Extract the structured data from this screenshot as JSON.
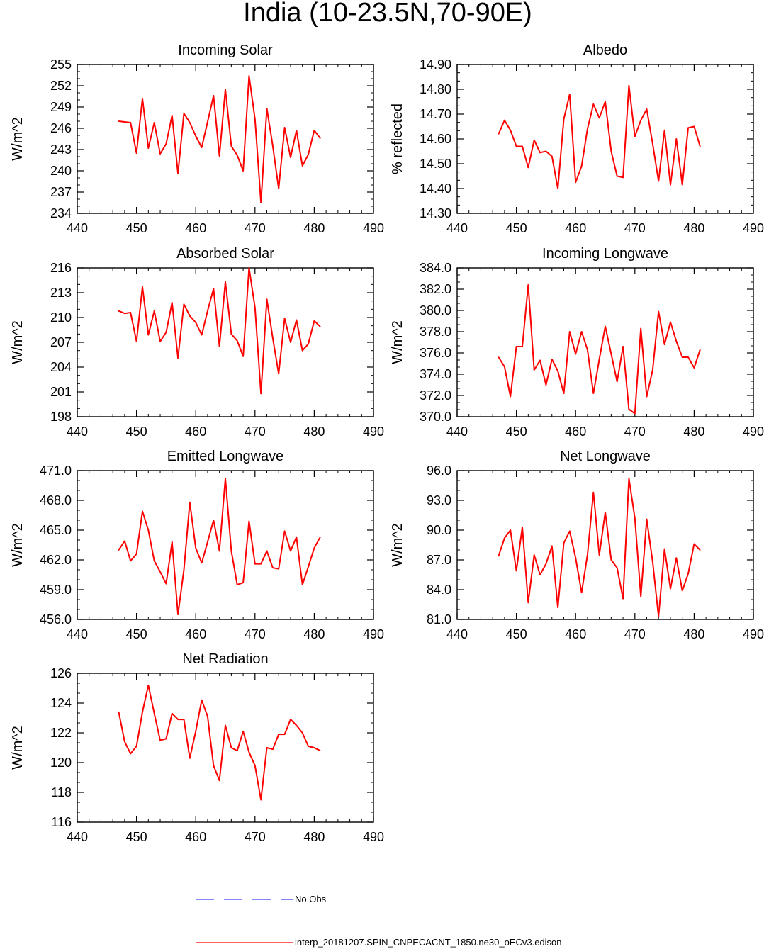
{
  "figure": {
    "title": "India (10-23.5N,70-90E)",
    "line_color": "#ff0000",
    "obs_color": "#3b3bff"
  },
  "legend": {
    "obs_label": "No Obs",
    "model_label": "interp_20181207.SPIN_CNPECACNT_1850.ne30_oECv3.edison"
  },
  "chart_data": [
    {
      "type": "line",
      "title": "Incoming Solar",
      "ylabel": "W/m^2",
      "xlim": [
        440,
        490
      ],
      "ylim": [
        234,
        255
      ],
      "xticks": [
        "440",
        "450",
        "460",
        "470",
        "480",
        "490"
      ],
      "yticks": [
        "234",
        "237",
        "240",
        "243",
        "246",
        "249",
        "252",
        "255"
      ],
      "x": [
        447,
        448,
        449,
        450,
        451,
        452,
        453,
        454,
        455,
        456,
        457,
        458,
        459,
        460,
        461,
        462,
        463,
        464,
        465,
        466,
        467,
        468,
        469,
        470,
        471,
        472,
        473,
        474,
        475,
        476,
        477,
        478,
        479,
        480,
        481
      ],
      "series": [
        {
          "values": [
            247.0,
            246.9,
            246.8,
            242.5,
            250.2,
            243.2,
            246.8,
            242.4,
            243.8,
            247.8,
            239.6,
            248.1,
            246.8,
            244.9,
            243.3,
            246.9,
            250.6,
            242.1,
            251.5,
            243.5,
            242.2,
            240.0,
            253.4,
            247.3,
            235.5,
            248.8,
            243.5,
            237.5,
            246.1,
            241.9,
            245.7,
            240.7,
            242.3,
            245.7,
            244.6
          ]
        }
      ]
    },
    {
      "type": "line",
      "title": "Albedo",
      "ylabel": "% reflected",
      "xlim": [
        440,
        490
      ],
      "ylim": [
        14.3,
        14.9
      ],
      "xticks": [
        "440",
        "450",
        "460",
        "470",
        "480",
        "490"
      ],
      "yticks": [
        "14.30",
        "14.40",
        "14.50",
        "14.60",
        "14.70",
        "14.80",
        "14.90"
      ],
      "x": [
        447,
        448,
        449,
        450,
        451,
        452,
        453,
        454,
        455,
        456,
        457,
        458,
        459,
        460,
        461,
        462,
        463,
        464,
        465,
        466,
        467,
        468,
        469,
        470,
        471,
        472,
        473,
        474,
        475,
        476,
        477,
        478,
        479,
        480,
        481
      ],
      "series": [
        {
          "values": [
            14.62,
            14.675,
            14.635,
            14.57,
            14.57,
            14.485,
            14.595,
            14.545,
            14.55,
            14.53,
            14.4,
            14.68,
            14.78,
            14.425,
            14.49,
            14.64,
            14.74,
            14.685,
            14.75,
            14.55,
            14.45,
            14.445,
            14.815,
            14.61,
            14.675,
            14.72,
            14.58,
            14.43,
            14.635,
            14.415,
            14.6,
            14.415,
            14.645,
            14.65,
            14.57
          ]
        }
      ]
    },
    {
      "type": "line",
      "title": "Absorbed Solar",
      "ylabel": "W/m^2",
      "xlim": [
        440,
        490
      ],
      "ylim": [
        198,
        216
      ],
      "xticks": [
        "440",
        "450",
        "460",
        "470",
        "480",
        "490"
      ],
      "yticks": [
        "198",
        "201",
        "204",
        "207",
        "210",
        "213",
        "216"
      ],
      "x": [
        447,
        448,
        449,
        450,
        451,
        452,
        453,
        454,
        455,
        456,
        457,
        458,
        459,
        460,
        461,
        462,
        463,
        464,
        465,
        466,
        467,
        468,
        469,
        470,
        471,
        472,
        473,
        474,
        475,
        476,
        477,
        478,
        479,
        480,
        481
      ],
      "series": [
        {
          "values": [
            210.8,
            210.5,
            210.6,
            207.1,
            213.7,
            207.9,
            210.8,
            207.1,
            208.2,
            211.8,
            205.1,
            211.6,
            210.2,
            209.4,
            207.9,
            210.8,
            213.5,
            206.5,
            214.3,
            208.0,
            207.2,
            205.3,
            216.0,
            211.2,
            200.8,
            212.2,
            207.5,
            203.2,
            209.9,
            207.0,
            209.7,
            206.0,
            206.8,
            209.6,
            208.9
          ]
        }
      ]
    },
    {
      "type": "line",
      "title": "Incoming Longwave",
      "ylabel": "W/m^2",
      "xlim": [
        440,
        490
      ],
      "ylim": [
        370,
        384
      ],
      "xticks": [
        "440",
        "450",
        "460",
        "470",
        "480",
        "490"
      ],
      "yticks": [
        "370.0",
        "372.0",
        "374.0",
        "376.0",
        "378.0",
        "380.0",
        "382.0",
        "384.0"
      ],
      "x": [
        447,
        448,
        449,
        450,
        451,
        452,
        453,
        454,
        455,
        456,
        457,
        458,
        459,
        460,
        461,
        462,
        463,
        464,
        465,
        466,
        467,
        468,
        469,
        470,
        471,
        472,
        473,
        474,
        475,
        476,
        477,
        478,
        479,
        480,
        481
      ],
      "series": [
        {
          "values": [
            375.6,
            374.7,
            371.9,
            376.6,
            376.6,
            382.4,
            374.4,
            375.3,
            373.0,
            375.4,
            374.3,
            372.2,
            378.0,
            375.9,
            378.0,
            376.3,
            372.2,
            375.4,
            378.5,
            375.9,
            373.3,
            376.6,
            370.7,
            370.3,
            378.3,
            371.9,
            374.4,
            379.9,
            376.8,
            378.9,
            377.1,
            375.6,
            375.6,
            374.6,
            376.3
          ]
        }
      ]
    },
    {
      "type": "line",
      "title": "Emitted Longwave",
      "ylabel": "W/m^2",
      "xlim": [
        440,
        490
      ],
      "ylim": [
        456,
        471
      ],
      "xticks": [
        "440",
        "450",
        "460",
        "470",
        "480",
        "490"
      ],
      "yticks": [
        "456.0",
        "459.0",
        "462.0",
        "465.0",
        "468.0",
        "471.0"
      ],
      "x": [
        447,
        448,
        449,
        450,
        451,
        452,
        453,
        454,
        455,
        456,
        457,
        458,
        459,
        460,
        461,
        462,
        463,
        464,
        465,
        466,
        467,
        468,
        469,
        470,
        471,
        472,
        473,
        474,
        475,
        476,
        477,
        478,
        479,
        480,
        481
      ],
      "series": [
        {
          "values": [
            463.0,
            463.9,
            461.9,
            462.6,
            466.9,
            465.0,
            461.9,
            460.8,
            459.6,
            463.8,
            456.5,
            461.0,
            467.8,
            463.2,
            461.7,
            463.8,
            466.0,
            462.9,
            470.2,
            462.9,
            459.5,
            459.7,
            465.9,
            461.6,
            461.6,
            462.9,
            461.2,
            461.1,
            464.9,
            462.9,
            464.3,
            459.5,
            461.3,
            463.2,
            464.3
          ]
        }
      ]
    },
    {
      "type": "line",
      "title": "Net Longwave",
      "ylabel": "W/m^2",
      "xlim": [
        440,
        490
      ],
      "ylim": [
        81,
        96
      ],
      "xticks": [
        "440",
        "450",
        "460",
        "470",
        "480",
        "490"
      ],
      "yticks": [
        "81.0",
        "84.0",
        "87.0",
        "90.0",
        "93.0",
        "96.0"
      ],
      "x": [
        447,
        448,
        449,
        450,
        451,
        452,
        453,
        454,
        455,
        456,
        457,
        458,
        459,
        460,
        461,
        462,
        463,
        464,
        465,
        466,
        467,
        468,
        469,
        470,
        471,
        472,
        473,
        474,
        475,
        476,
        477,
        478,
        479,
        480,
        481
      ],
      "series": [
        {
          "values": [
            87.4,
            89.2,
            90.0,
            85.9,
            90.3,
            82.7,
            87.5,
            85.5,
            86.6,
            88.4,
            82.2,
            88.7,
            89.9,
            87.2,
            83.7,
            87.5,
            93.8,
            87.5,
            91.8,
            87.0,
            86.2,
            83.1,
            95.2,
            91.2,
            83.3,
            91.1,
            86.8,
            81.3,
            88.1,
            84.1,
            87.2,
            83.9,
            85.6,
            88.6,
            88.0
          ]
        }
      ]
    },
    {
      "type": "line",
      "title": "Net Radiation",
      "ylabel": "W/m^2",
      "xlim": [
        440,
        490
      ],
      "ylim": [
        116,
        126
      ],
      "xticks": [
        "440",
        "450",
        "460",
        "470",
        "480",
        "490"
      ],
      "yticks": [
        "116",
        "118",
        "120",
        "122",
        "124",
        "126"
      ],
      "x": [
        447,
        448,
        449,
        450,
        451,
        452,
        453,
        454,
        455,
        456,
        457,
        458,
        459,
        460,
        461,
        462,
        463,
        464,
        465,
        466,
        467,
        468,
        469,
        470,
        471,
        472,
        473,
        474,
        475,
        476,
        477,
        478,
        479,
        480,
        481
      ],
      "series": [
        {
          "values": [
            123.4,
            121.4,
            120.6,
            121.1,
            123.4,
            125.2,
            123.3,
            121.5,
            121.6,
            123.3,
            122.9,
            122.9,
            120.3,
            122.1,
            124.2,
            123.1,
            119.8,
            118.8,
            122.5,
            121.0,
            120.8,
            122.1,
            120.7,
            119.8,
            117.5,
            121.0,
            120.9,
            121.9,
            121.9,
            122.9,
            122.5,
            122.0,
            121.1,
            121.0,
            120.8
          ]
        }
      ]
    }
  ]
}
